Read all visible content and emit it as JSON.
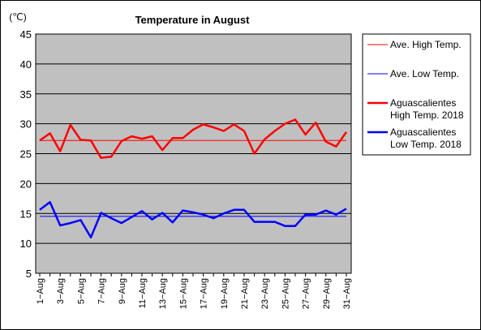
{
  "chart_data": {
    "type": "line",
    "title": "Temperature in August",
    "ylabel": "(℃)",
    "xlabel": "",
    "ylim": [
      5,
      45
    ],
    "yticks": [
      5,
      10,
      15,
      20,
      25,
      30,
      35,
      40,
      45
    ],
    "grid": true,
    "legend_position": "right",
    "x": [
      1,
      2,
      3,
      4,
      5,
      6,
      7,
      8,
      9,
      10,
      11,
      12,
      13,
      14,
      15,
      16,
      17,
      18,
      19,
      20,
      21,
      22,
      23,
      24,
      25,
      26,
      27,
      28,
      29,
      30,
      31
    ],
    "x_tick_labels": [
      "1−Aug",
      "3−Aug",
      "5−Aug",
      "7−Aug",
      "9−Aug",
      "11−Aug",
      "13−Aug",
      "15−Aug",
      "17−Aug",
      "19−Aug",
      "21−Aug",
      "23−Aug",
      "25−Aug",
      "27−Aug",
      "29−Aug",
      "31−Aug"
    ],
    "series": [
      {
        "name": "Ave. High Temp.",
        "color": "#ff0000",
        "width": 1,
        "values": [
          27.2,
          27.2,
          27.2,
          27.2,
          27.2,
          27.2,
          27.2,
          27.2,
          27.2,
          27.2,
          27.2,
          27.2,
          27.2,
          27.2,
          27.2,
          27.2,
          27.2,
          27.2,
          27.2,
          27.2,
          27.2,
          27.2,
          27.2,
          27.2,
          27.2,
          27.2,
          27.2,
          27.2,
          27.2,
          27.2,
          27.2
        ]
      },
      {
        "name": "Ave. Low Temp.",
        "color": "#0000ff",
        "width": 1,
        "values": [
          14.5,
          14.5,
          14.5,
          14.5,
          14.5,
          14.5,
          14.5,
          14.5,
          14.5,
          14.5,
          14.5,
          14.5,
          14.5,
          14.5,
          14.5,
          14.5,
          14.5,
          14.5,
          14.5,
          14.5,
          14.5,
          14.5,
          14.5,
          14.5,
          14.5,
          14.5,
          14.5,
          14.5,
          14.5,
          14.5,
          14.5
        ]
      },
      {
        "name": "Aguascalientes High Temp. 2018",
        "legend_lines": [
          "Aguascalientes",
          "High Temp. 2018"
        ],
        "color": "#ff0000",
        "width": 2.5,
        "values": [
          27.2,
          28.4,
          25.4,
          29.8,
          27.3,
          27.2,
          24.3,
          24.5,
          27.1,
          27.9,
          27.5,
          27.9,
          25.6,
          27.6,
          27.6,
          29.0,
          29.9,
          29.4,
          28.8,
          29.9,
          28.8,
          25.0,
          27.4,
          28.8,
          30.0,
          30.7,
          28.2,
          30.2,
          27.0,
          26.2,
          28.6
        ]
      },
      {
        "name": "Aguascalientes Low Temp. 2018",
        "legend_lines": [
          "Aguascalientes",
          "Low Temp. 2018"
        ],
        "color": "#0000ff",
        "width": 2.5,
        "values": [
          15.6,
          16.9,
          13.0,
          13.4,
          13.9,
          11.0,
          15.1,
          14.2,
          13.4,
          14.4,
          15.4,
          14.0,
          15.1,
          13.5,
          15.5,
          15.2,
          14.8,
          14.2,
          15.0,
          15.6,
          15.6,
          13.6,
          13.6,
          13.6,
          12.9,
          12.9,
          14.8,
          14.8,
          15.5,
          14.8,
          15.8
        ]
      }
    ]
  }
}
